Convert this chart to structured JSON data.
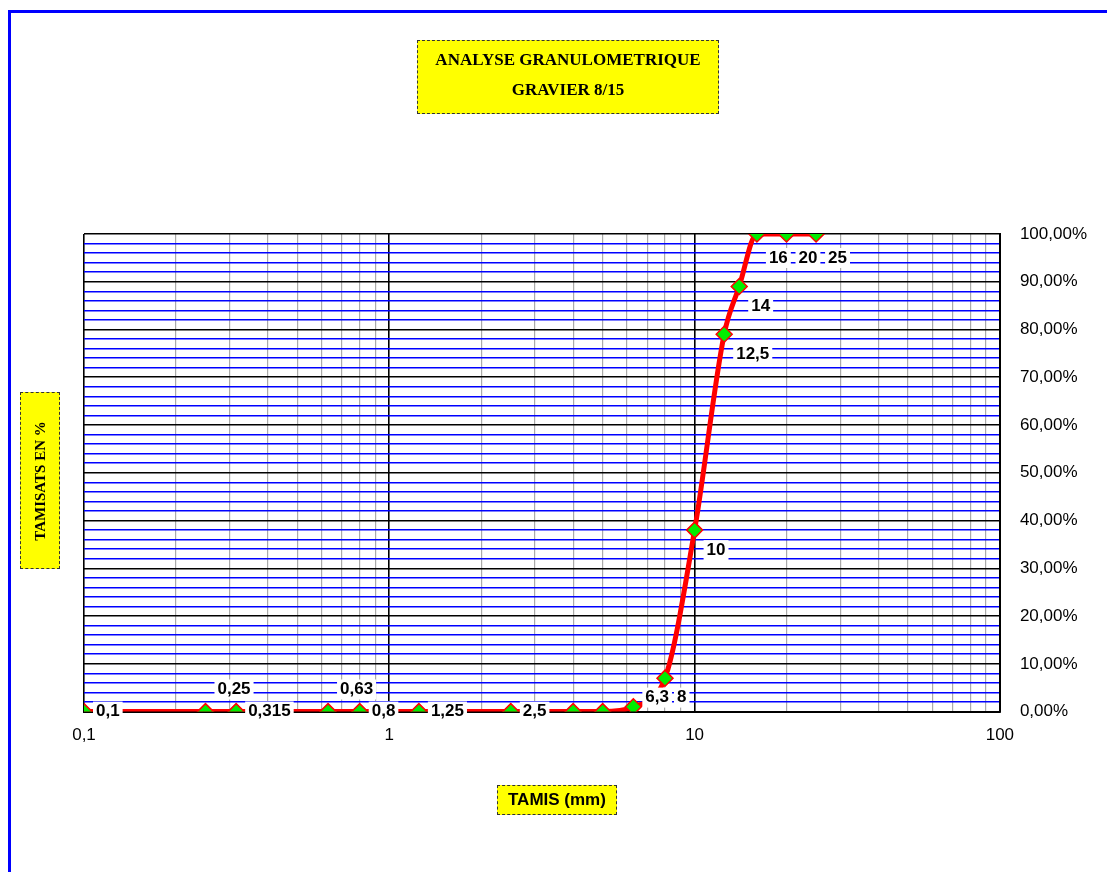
{
  "chart_data": {
    "type": "line",
    "title": "ANALYSE GRANULOMETRIQUE",
    "subtitle": "GRAVIER 8/15",
    "xlabel": "TAMIS (mm)",
    "ylabel": "TAMISATS EN %",
    "x": [
      0.1,
      0.25,
      0.315,
      0.63,
      0.8,
      1.25,
      2.5,
      4,
      5,
      6.3,
      8,
      10,
      12.5,
      14,
      16,
      20,
      25
    ],
    "series": [
      {
        "color": "#ff0000",
        "values": [
          0,
          0,
          0,
          0,
          0,
          0,
          0,
          0,
          0,
          1,
          7,
          38,
          79,
          89,
          100,
          100,
          100
        ]
      }
    ],
    "log": "x",
    "grid": true,
    "legend": false,
    "marker": "diamond",
    "line_style": "solid",
    "xlim": [
      0.1,
      100
    ],
    "xticks": [
      {
        "value": 0.1,
        "label": "0,1"
      },
      {
        "value": 0.2,
        "label": null
      },
      {
        "value": 0.3,
        "label": null
      },
      {
        "value": 0.4,
        "label": null
      },
      {
        "value": 0.5,
        "label": null
      },
      {
        "value": 0.6,
        "label": null
      },
      {
        "value": 0.7,
        "label": null
      },
      {
        "value": 0.8,
        "label": null
      },
      {
        "value": 0.9,
        "label": null
      },
      {
        "value": 1,
        "label": "1"
      },
      {
        "value": 2,
        "label": null
      },
      {
        "value": 3,
        "label": null
      },
      {
        "value": 4,
        "label": null
      },
      {
        "value": 5,
        "label": null
      },
      {
        "value": 6,
        "label": null
      },
      {
        "value": 7,
        "label": null
      },
      {
        "value": 8,
        "label": null
      },
      {
        "value": 9,
        "label": null
      },
      {
        "value": 10,
        "label": "10"
      },
      {
        "value": 20,
        "label": null
      },
      {
        "value": 30,
        "label": null
      },
      {
        "value": 40,
        "label": null
      },
      {
        "value": 50,
        "label": null
      },
      {
        "value": 60,
        "label": null
      },
      {
        "value": 70,
        "label": null
      },
      {
        "value": 80,
        "label": null
      },
      {
        "value": 90,
        "label": null
      },
      {
        "value": 100,
        "label": "100"
      }
    ],
    "ylim": [
      0,
      100
    ],
    "yticks": [
      {
        "value": 0,
        "label": "0,00%"
      },
      {
        "value": 2,
        "label": null
      },
      {
        "value": 4,
        "label": null
      },
      {
        "value": 6,
        "label": null
      },
      {
        "value": 8,
        "label": null
      },
      {
        "value": 10,
        "label": "10,00%"
      },
      {
        "value": 12,
        "label": null
      },
      {
        "value": 14,
        "label": null
      },
      {
        "value": 16,
        "label": null
      },
      {
        "value": 18,
        "label": null
      },
      {
        "value": 20,
        "label": "20,00%"
      },
      {
        "value": 22,
        "label": null
      },
      {
        "value": 24,
        "label": null
      },
      {
        "value": 26,
        "label": null
      },
      {
        "value": 28,
        "label": null
      },
      {
        "value": 30,
        "label": "30,00%"
      },
      {
        "value": 32,
        "label": null
      },
      {
        "value": 34,
        "label": null
      },
      {
        "value": 36,
        "label": null
      },
      {
        "value": 38,
        "label": null
      },
      {
        "value": 40,
        "label": "40,00%"
      },
      {
        "value": 42,
        "label": null
      },
      {
        "value": 44,
        "label": null
      },
      {
        "value": 46,
        "label": null
      },
      {
        "value": 48,
        "label": null
      },
      {
        "value": 50,
        "label": "50,00%"
      },
      {
        "value": 52,
        "label": null
      },
      {
        "value": 54,
        "label": null
      },
      {
        "value": 56,
        "label": null
      },
      {
        "value": 58,
        "label": null
      },
      {
        "value": 60,
        "label": "60,00%"
      },
      {
        "value": 62,
        "label": null
      },
      {
        "value": 64,
        "label": null
      },
      {
        "value": 66,
        "label": null
      },
      {
        "value": 68,
        "label": null
      },
      {
        "value": 70,
        "label": "70,00%"
      },
      {
        "value": 72,
        "label": null
      },
      {
        "value": 74,
        "label": null
      },
      {
        "value": 76,
        "label": null
      },
      {
        "value": 78,
        "label": null
      },
      {
        "value": 80,
        "label": "80,00%"
      },
      {
        "value": 82,
        "label": null
      },
      {
        "value": 84,
        "label": null
      },
      {
        "value": 86,
        "label": null
      },
      {
        "value": 88,
        "label": null
      },
      {
        "value": 90,
        "label": "90,00%"
      },
      {
        "value": 92,
        "label": null
      },
      {
        "value": 94,
        "label": null
      },
      {
        "value": 96,
        "label": null
      },
      {
        "value": 98,
        "label": null
      },
      {
        "value": 100,
        "label": "100,00%"
      }
    ],
    "annotations": [
      {
        "text": "0,1",
        "x": 0.1,
        "y": 0
      },
      {
        "text": "0,25",
        "x": 0.25,
        "y": 0
      },
      {
        "text": "0,315",
        "x": 0.315,
        "y": 0
      },
      {
        "text": "0,63",
        "x": 0.63,
        "y": 0
      },
      {
        "text": "0,8",
        "x": 0.8,
        "y": 0
      },
      {
        "text": "1,25",
        "x": 1.25,
        "y": 0
      },
      {
        "text": "2,5",
        "x": 2.5,
        "y": 0
      },
      {
        "text": "6,3",
        "x": 6.3,
        "y": 1
      },
      {
        "text": "8",
        "x": 8,
        "y": 7
      },
      {
        "text": "10",
        "x": 10,
        "y": 38
      },
      {
        "text": "12,5",
        "x": 12.5,
        "y": 79
      },
      {
        "text": "14",
        "x": 14,
        "y": 89
      },
      {
        "text": "16",
        "x": 16,
        "y": 100
      },
      {
        "text": "20",
        "x": 20,
        "y": 100
      },
      {
        "text": "25",
        "x": 25,
        "y": 100
      }
    ]
  }
}
